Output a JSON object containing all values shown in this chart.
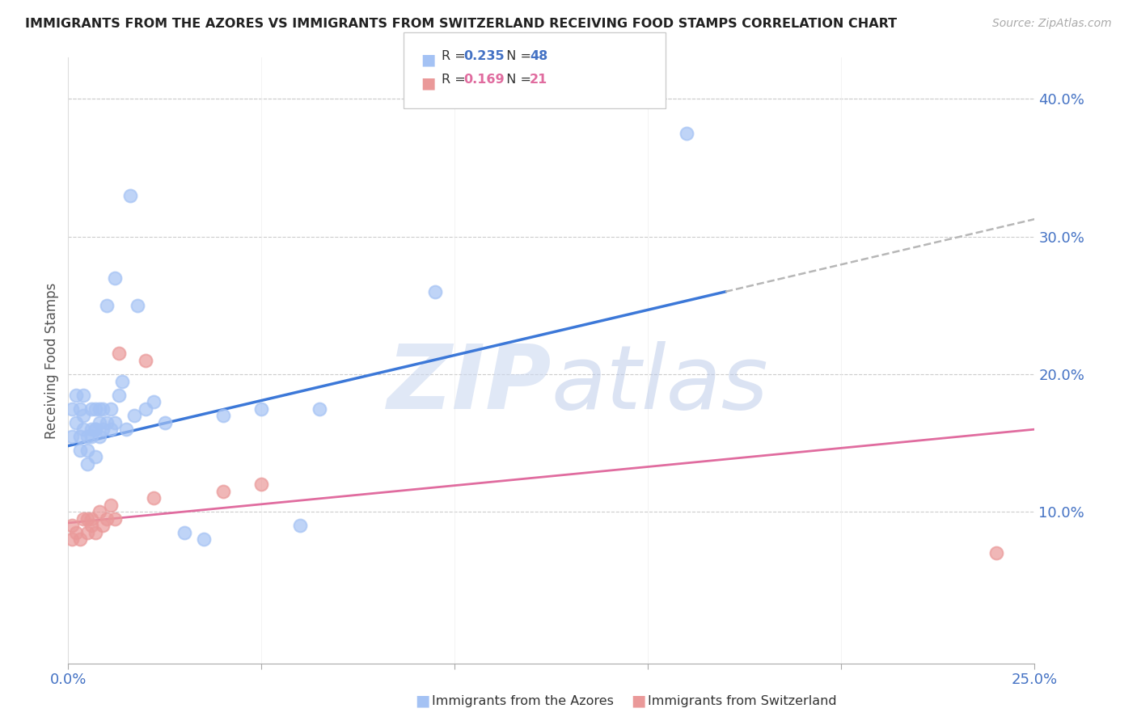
{
  "title": "IMMIGRANTS FROM THE AZORES VS IMMIGRANTS FROM SWITZERLAND RECEIVING FOOD STAMPS CORRELATION CHART",
  "source": "Source: ZipAtlas.com",
  "ylabel": "Receiving Food Stamps",
  "ytick_vals": [
    0.1,
    0.2,
    0.3,
    0.4
  ],
  "ytick_labels": [
    "10.0%",
    "20.0%",
    "30.0%",
    "40.0%"
  ],
  "xlim": [
    0.0,
    0.25
  ],
  "ylim": [
    -0.01,
    0.43
  ],
  "color_azores": "#a4c2f4",
  "color_switzerland": "#ea9999",
  "color_line_azores": "#3c78d8",
  "color_line_switzerland": "#e06c9f",
  "color_trendline_ext": "#b7b7b7",
  "color_axis_blue": "#4472c4",
  "color_ytick": "#4472c4",
  "azores_x": [
    0.001,
    0.001,
    0.002,
    0.002,
    0.003,
    0.003,
    0.003,
    0.004,
    0.004,
    0.004,
    0.005,
    0.005,
    0.005,
    0.006,
    0.006,
    0.006,
    0.007,
    0.007,
    0.007,
    0.007,
    0.008,
    0.008,
    0.008,
    0.009,
    0.009,
    0.01,
    0.01,
    0.011,
    0.011,
    0.012,
    0.012,
    0.013,
    0.014,
    0.015,
    0.016,
    0.017,
    0.018,
    0.02,
    0.022,
    0.025,
    0.03,
    0.035,
    0.04,
    0.05,
    0.06,
    0.065,
    0.095,
    0.16
  ],
  "azores_y": [
    0.175,
    0.155,
    0.185,
    0.165,
    0.145,
    0.175,
    0.155,
    0.16,
    0.17,
    0.185,
    0.155,
    0.145,
    0.135,
    0.16,
    0.155,
    0.175,
    0.14,
    0.16,
    0.175,
    0.16,
    0.155,
    0.165,
    0.175,
    0.16,
    0.175,
    0.165,
    0.25,
    0.16,
    0.175,
    0.165,
    0.27,
    0.185,
    0.195,
    0.16,
    0.33,
    0.17,
    0.25,
    0.175,
    0.18,
    0.165,
    0.085,
    0.08,
    0.17,
    0.175,
    0.09,
    0.175,
    0.26,
    0.375
  ],
  "switzerland_x": [
    0.001,
    0.001,
    0.002,
    0.003,
    0.004,
    0.005,
    0.005,
    0.006,
    0.006,
    0.007,
    0.008,
    0.009,
    0.01,
    0.011,
    0.012,
    0.013,
    0.02,
    0.022,
    0.04,
    0.05,
    0.24
  ],
  "switzerland_y": [
    0.09,
    0.08,
    0.085,
    0.08,
    0.095,
    0.095,
    0.085,
    0.09,
    0.095,
    0.085,
    0.1,
    0.09,
    0.095,
    0.105,
    0.095,
    0.215,
    0.21,
    0.11,
    0.115,
    0.12,
    0.07
  ],
  "line_azores_x0": 0.0,
  "line_azores_y0": 0.148,
  "line_azores_x1": 0.17,
  "line_azores_y1": 0.26,
  "line_dash_x0": 0.17,
  "line_dash_x1": 0.25,
  "line_switz_x0": 0.0,
  "line_switz_y0": 0.092,
  "line_switz_x1": 0.25,
  "line_switz_y1": 0.16
}
